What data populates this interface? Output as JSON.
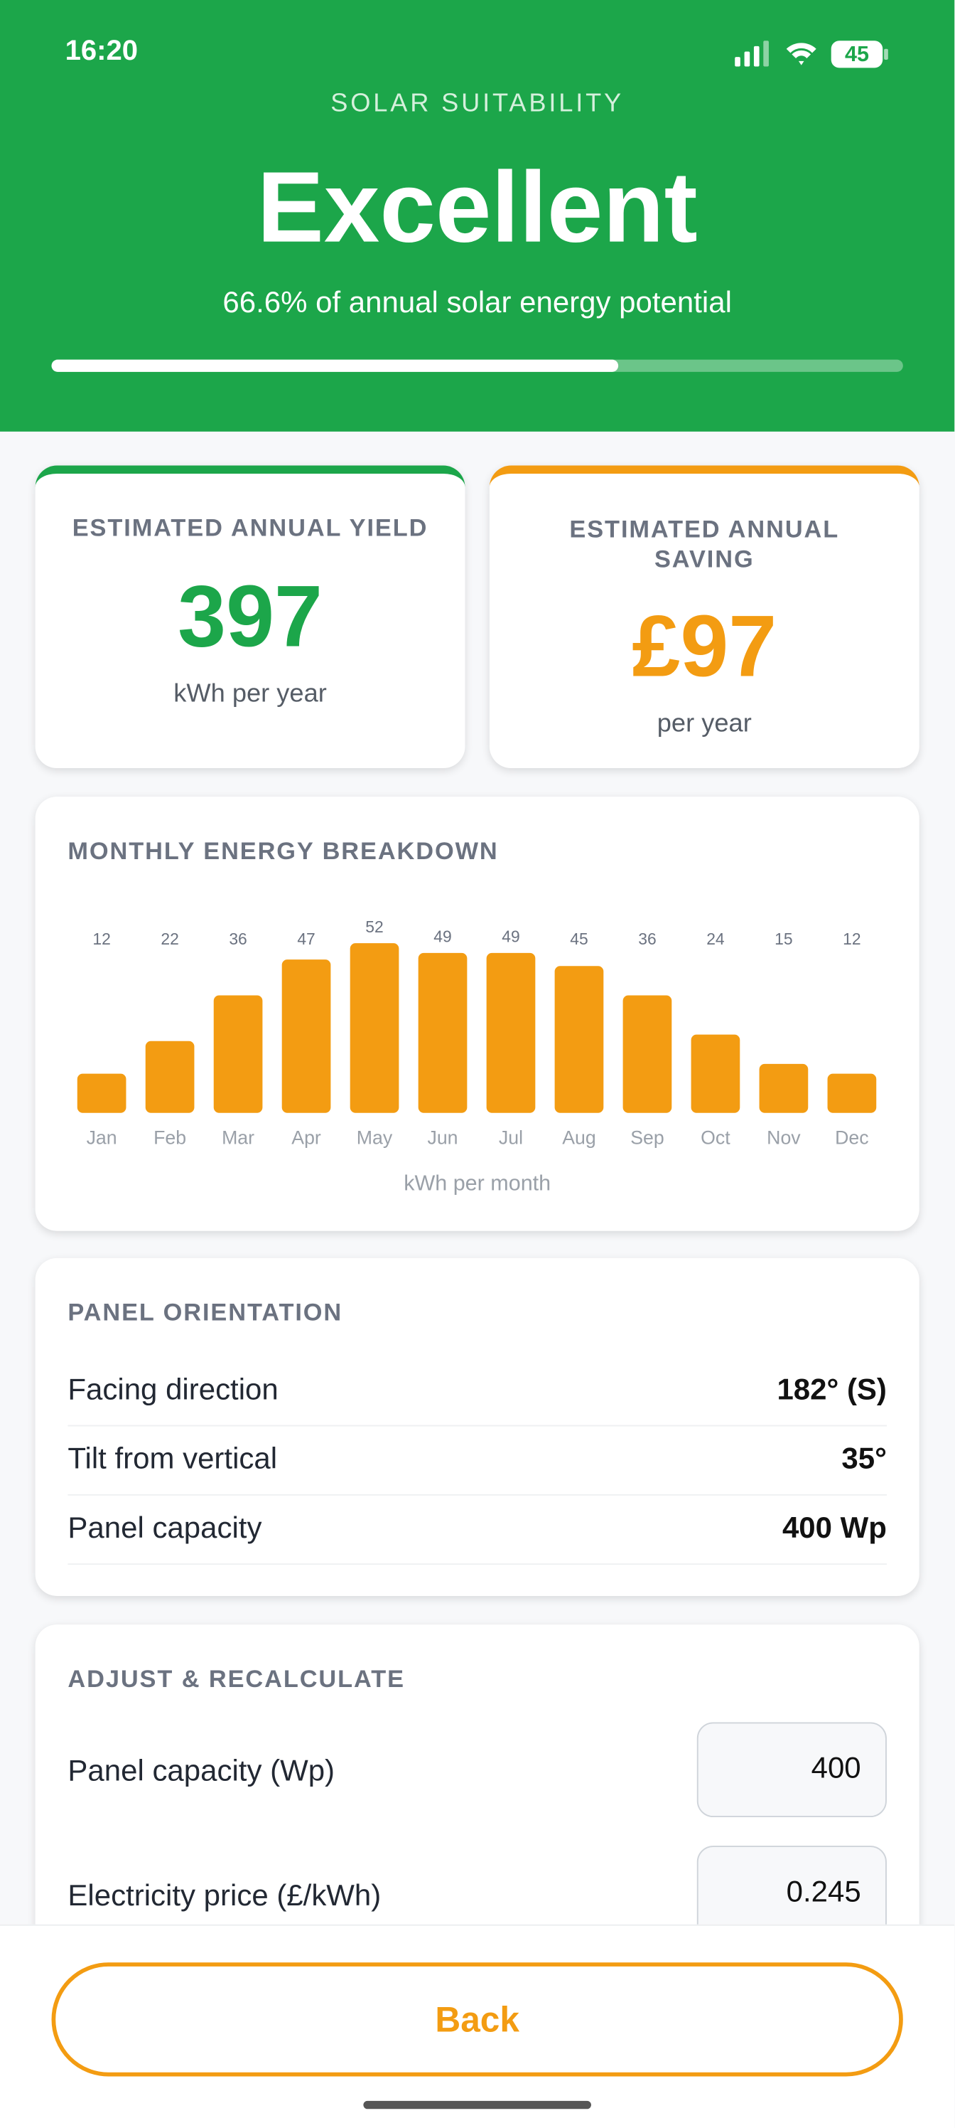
{
  "status_bar": {
    "time": "16:20",
    "battery": "45"
  },
  "header": {
    "kicker": "SOLAR SUITABILITY",
    "rating": "Excellent",
    "potential_text": "66.6% of annual solar energy potential",
    "potential_percent": 66.6
  },
  "cards": [
    {
      "label": "ESTIMATED ANNUAL YIELD",
      "value": 397,
      "unit": "kWh per year"
    },
    {
      "label": "ESTIMATED ANNUAL SAVING",
      "value": "£97",
      "unit": "per year"
    }
  ],
  "chart_data": {
    "type": "bar",
    "title": "MONTHLY ENERGY BREAKDOWN",
    "categories": [
      "Jan",
      "Feb",
      "Mar",
      "Apr",
      "May",
      "Jun",
      "Jul",
      "Aug",
      "Sep",
      "Oct",
      "Nov",
      "Dec"
    ],
    "values": [
      12,
      22,
      36,
      47,
      52,
      49,
      49,
      45,
      36,
      24,
      15,
      12
    ],
    "color": "#f39c12",
    "x_label": "kWh per month"
  },
  "orientation": {
    "title": "PANEL ORIENTATION",
    "rows": [
      {
        "label": "Facing direction",
        "value": "182° (S)"
      },
      {
        "label": "Tilt from vertical",
        "value": "35°"
      },
      {
        "label": "Panel capacity",
        "value": "400 Wp"
      }
    ]
  },
  "adjust": {
    "title": "ADJUST & RECALCULATE",
    "fields": [
      {
        "label": "Panel capacity (Wp)",
        "value": 400
      },
      {
        "label": "Electricity price (£/kWh)",
        "value": 0.245
      }
    ]
  },
  "footer": {
    "button": "Back"
  }
}
